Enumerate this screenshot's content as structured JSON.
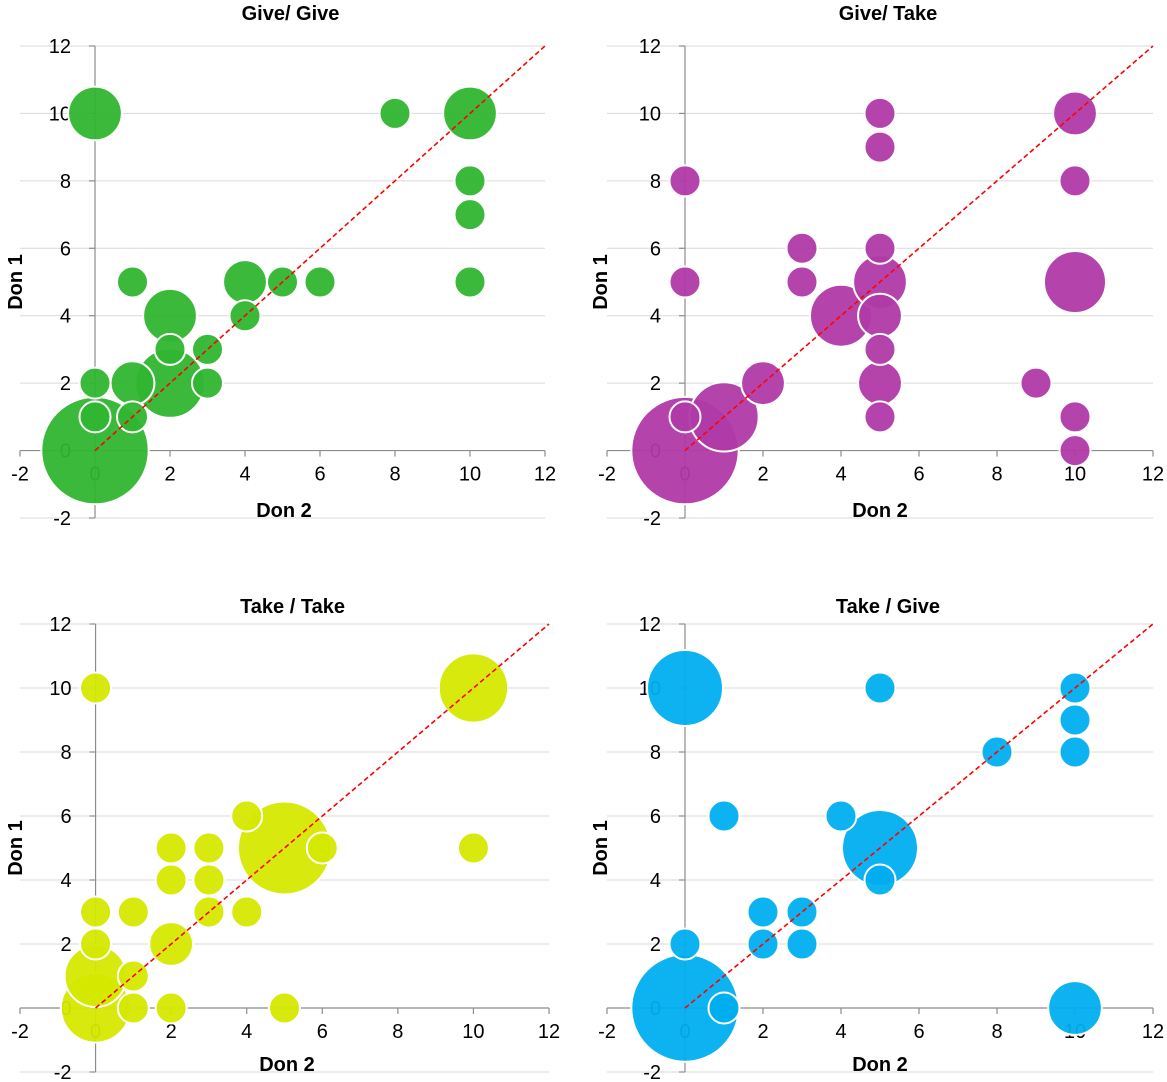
{
  "colors": {
    "give_give": "#2fb52f",
    "give_take": "#b03aa7",
    "take_take": "#d5e800",
    "take_give": "#00aeef",
    "reference_line": "#ff0000",
    "grid": "#d9d9d9"
  },
  "chart_data": [
    {
      "type": "bubble",
      "title": "Give/ Give",
      "xlabel": "Don 2",
      "ylabel": "Don 1",
      "xlim": [
        -2,
        12
      ],
      "ylim": [
        -2,
        12
      ],
      "xticks": [
        -2,
        0,
        2,
        4,
        6,
        8,
        10,
        12
      ],
      "yticks": [
        -2,
        0,
        2,
        4,
        6,
        8,
        10,
        12
      ],
      "grid": "horizontal",
      "reference_line": "y = x",
      "points": [
        {
          "x": 0,
          "y": 0,
          "size": 12
        },
        {
          "x": 0,
          "y": 1,
          "size": 1
        },
        {
          "x": 0,
          "y": 2,
          "size": 1
        },
        {
          "x": 1,
          "y": 1,
          "size": 1
        },
        {
          "x": 1,
          "y": 2,
          "size": 2
        },
        {
          "x": 2,
          "y": 2,
          "size": 5
        },
        {
          "x": 2,
          "y": 3,
          "size": 1
        },
        {
          "x": 2,
          "y": 4,
          "size": 3
        },
        {
          "x": 3,
          "y": 2,
          "size": 1
        },
        {
          "x": 3,
          "y": 3,
          "size": 1
        },
        {
          "x": 1,
          "y": 5,
          "size": 1
        },
        {
          "x": 4,
          "y": 4,
          "size": 1
        },
        {
          "x": 4,
          "y": 5,
          "size": 2
        },
        {
          "x": 5,
          "y": 5,
          "size": 1
        },
        {
          "x": 6,
          "y": 5,
          "size": 1
        },
        {
          "x": 0,
          "y": 10,
          "size": 3
        },
        {
          "x": 8,
          "y": 10,
          "size": 1
        },
        {
          "x": 10,
          "y": 10,
          "size": 3
        },
        {
          "x": 10,
          "y": 8,
          "size": 1
        },
        {
          "x": 10,
          "y": 7,
          "size": 1
        },
        {
          "x": 10,
          "y": 5,
          "size": 1
        }
      ]
    },
    {
      "type": "bubble",
      "title": "Give/ Take",
      "xlabel": "Don 2",
      "ylabel": "Don 1",
      "xlim": [
        -2,
        12
      ],
      "ylim": [
        -2,
        12
      ],
      "xticks": [
        -2,
        0,
        2,
        4,
        6,
        8,
        10,
        12
      ],
      "yticks": [
        -2,
        0,
        2,
        4,
        6,
        8,
        10,
        12
      ],
      "grid": "horizontal",
      "reference_line": "y = x",
      "points": [
        {
          "x": 0,
          "y": 0,
          "size": 12
        },
        {
          "x": 0,
          "y": 1,
          "size": 1
        },
        {
          "x": 1,
          "y": 1,
          "size": 5
        },
        {
          "x": 0,
          "y": 5,
          "size": 1
        },
        {
          "x": 0,
          "y": 8,
          "size": 1
        },
        {
          "x": 2,
          "y": 2,
          "size": 2
        },
        {
          "x": 3,
          "y": 5,
          "size": 1
        },
        {
          "x": 3,
          "y": 6,
          "size": 1
        },
        {
          "x": 4,
          "y": 4,
          "size": 4
        },
        {
          "x": 5,
          "y": 10,
          "size": 1
        },
        {
          "x": 5,
          "y": 9,
          "size": 1
        },
        {
          "x": 5,
          "y": 6,
          "size": 1
        },
        {
          "x": 5,
          "y": 5,
          "size": 3
        },
        {
          "x": 5,
          "y": 4,
          "size": 2
        },
        {
          "x": 5,
          "y": 3,
          "size": 1
        },
        {
          "x": 5,
          "y": 2,
          "size": 2
        },
        {
          "x": 5,
          "y": 1,
          "size": 1
        },
        {
          "x": 9,
          "y": 2,
          "size": 1
        },
        {
          "x": 10,
          "y": 10,
          "size": 2
        },
        {
          "x": 10,
          "y": 8,
          "size": 1
        },
        {
          "x": 10,
          "y": 5,
          "size": 4
        },
        {
          "x": 10,
          "y": 1,
          "size": 1
        },
        {
          "x": 10,
          "y": 0,
          "size": 1
        }
      ]
    },
    {
      "type": "bubble",
      "title": "Take / Take",
      "xlabel": "Don 2",
      "ylabel": "Don 1",
      "xlim": [
        -2,
        12
      ],
      "ylim": [
        -2,
        12
      ],
      "xticks": [
        -2,
        0,
        2,
        4,
        6,
        8,
        10,
        12
      ],
      "yticks": [
        -2,
        0,
        2,
        4,
        6,
        8,
        10,
        12
      ],
      "grid": "horizontal",
      "reference_line": "y = x",
      "points": [
        {
          "x": 0,
          "y": 0,
          "size": 5
        },
        {
          "x": 0,
          "y": 1,
          "size": 4
        },
        {
          "x": 0,
          "y": 2,
          "size": 1
        },
        {
          "x": 0,
          "y": 3,
          "size": 1
        },
        {
          "x": 1,
          "y": 1,
          "size": 1
        },
        {
          "x": 1,
          "y": 0,
          "size": 1
        },
        {
          "x": 1,
          "y": 3,
          "size": 1
        },
        {
          "x": 2,
          "y": 2,
          "size": 2
        },
        {
          "x": 2,
          "y": 0,
          "size": 1
        },
        {
          "x": 2,
          "y": 4,
          "size": 1
        },
        {
          "x": 2,
          "y": 5,
          "size": 1
        },
        {
          "x": 3,
          "y": 3,
          "size": 1
        },
        {
          "x": 3,
          "y": 4,
          "size": 1
        },
        {
          "x": 3,
          "y": 5,
          "size": 1
        },
        {
          "x": 4,
          "y": 3,
          "size": 1
        },
        {
          "x": 4,
          "y": 6,
          "size": 1
        },
        {
          "x": 5,
          "y": 5,
          "size": 9
        },
        {
          "x": 6,
          "y": 5,
          "size": 1
        },
        {
          "x": 5,
          "y": 0,
          "size": 1
        },
        {
          "x": 0,
          "y": 10,
          "size": 1
        },
        {
          "x": 10,
          "y": 10,
          "size": 5
        },
        {
          "x": 10,
          "y": 5,
          "size": 1
        }
      ]
    },
    {
      "type": "bubble",
      "title": "Take / Give",
      "xlabel": "Don 2",
      "ylabel": "Don 1",
      "xlim": [
        -2,
        12
      ],
      "ylim": [
        -2,
        12
      ],
      "xticks": [
        -2,
        0,
        2,
        4,
        6,
        8,
        10,
        12
      ],
      "yticks": [
        -2,
        0,
        2,
        4,
        6,
        8,
        10,
        12
      ],
      "grid": "horizontal",
      "reference_line": "y = x",
      "points": [
        {
          "x": 0,
          "y": 0,
          "size": 12
        },
        {
          "x": 0,
          "y": 2,
          "size": 1
        },
        {
          "x": 1,
          "y": 0,
          "size": 1
        },
        {
          "x": 1,
          "y": 6,
          "size": 1
        },
        {
          "x": 0,
          "y": 10,
          "size": 6
        },
        {
          "x": 2,
          "y": 2,
          "size": 1
        },
        {
          "x": 2,
          "y": 3,
          "size": 1
        },
        {
          "x": 3,
          "y": 2,
          "size": 1
        },
        {
          "x": 3,
          "y": 3,
          "size": 1
        },
        {
          "x": 4,
          "y": 6,
          "size": 1
        },
        {
          "x": 5,
          "y": 4,
          "size": 1
        },
        {
          "x": 5,
          "y": 5,
          "size": 6
        },
        {
          "x": 5,
          "y": 10,
          "size": 1
        },
        {
          "x": 8,
          "y": 8,
          "size": 1
        },
        {
          "x": 10,
          "y": 10,
          "size": 1
        },
        {
          "x": 10,
          "y": 9,
          "size": 1
        },
        {
          "x": 10,
          "y": 8,
          "size": 1
        },
        {
          "x": 10,
          "y": 0,
          "size": 3
        }
      ]
    }
  ]
}
